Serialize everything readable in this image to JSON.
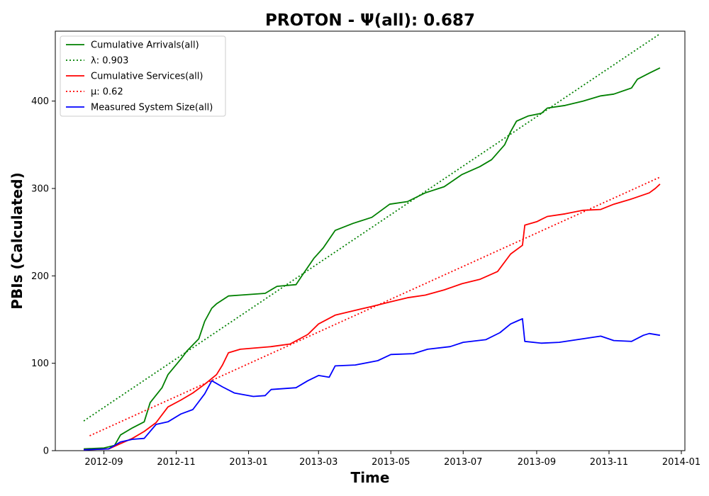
{
  "chart_data": {
    "type": "line",
    "title": "PROTON -  Ψ(all): 0.687",
    "xlabel": "Time",
    "ylabel": "PBIs (Calculated)",
    "x_ticks": [
      "2012-09",
      "2012-11",
      "2013-01",
      "2013-03",
      "2013-05",
      "2013-07",
      "2013-09",
      "2013-11",
      "2014-01"
    ],
    "y_ticks": [
      "0",
      "100",
      "200",
      "300",
      "400"
    ],
    "xlim": [
      "2012-07-22",
      "2014-01-04"
    ],
    "ylim": [
      0,
      480
    ],
    "grid": false,
    "legend_position": "top-left",
    "series": [
      {
        "name": "Cumulative Arrivals(all)",
        "style": "solid",
        "color": "#008000",
        "points": [
          [
            "2012-08-15",
            2
          ],
          [
            "2012-09-01",
            3
          ],
          [
            "2012-09-10",
            6
          ],
          [
            "2012-09-15",
            18
          ],
          [
            "2012-09-25",
            26
          ],
          [
            "2012-10-05",
            33
          ],
          [
            "2012-10-10",
            55
          ],
          [
            "2012-10-20",
            72
          ],
          [
            "2012-10-25",
            87
          ],
          [
            "2012-11-05",
            105
          ],
          [
            "2012-11-10",
            114
          ],
          [
            "2012-11-20",
            128
          ],
          [
            "2012-11-25",
            148
          ],
          [
            "2012-12-01",
            163
          ],
          [
            "2012-12-05",
            168
          ],
          [
            "2012-12-15",
            177
          ],
          [
            "2012-12-25",
            178
          ],
          [
            "2013-01-15",
            180
          ],
          [
            "2013-01-25",
            188
          ],
          [
            "2013-02-10",
            190
          ],
          [
            "2013-02-15",
            200
          ],
          [
            "2013-02-25",
            220
          ],
          [
            "2013-03-05",
            232
          ],
          [
            "2013-03-15",
            252
          ],
          [
            "2013-03-30",
            260
          ],
          [
            "2013-04-15",
            267
          ],
          [
            "2013-04-30",
            282
          ],
          [
            "2013-05-15",
            285
          ],
          [
            "2013-05-30",
            295
          ],
          [
            "2013-06-15",
            302
          ],
          [
            "2013-06-30",
            316
          ],
          [
            "2013-07-15",
            325
          ],
          [
            "2013-07-25",
            333
          ],
          [
            "2013-08-05",
            350
          ],
          [
            "2013-08-10",
            365
          ],
          [
            "2013-08-15",
            377
          ],
          [
            "2013-08-25",
            383
          ],
          [
            "2013-09-05",
            386
          ],
          [
            "2013-09-10",
            392
          ],
          [
            "2013-09-25",
            395
          ],
          [
            "2013-10-10",
            400
          ],
          [
            "2013-10-25",
            406
          ],
          [
            "2013-11-05",
            408
          ],
          [
            "2013-11-20",
            415
          ],
          [
            "2013-11-25",
            425
          ],
          [
            "2013-12-05",
            432
          ],
          [
            "2013-12-14",
            438
          ]
        ]
      },
      {
        "name": "λ: 0.903",
        "style": "dotted",
        "color": "#008000",
        "points": [
          [
            "2012-08-15",
            34
          ],
          [
            "2013-12-14",
            477
          ]
        ]
      },
      {
        "name": "Cumulative Services(all)",
        "style": "solid",
        "color": "#ff0000",
        "points": [
          [
            "2012-08-15",
            1
          ],
          [
            "2012-09-05",
            2
          ],
          [
            "2012-09-15",
            8
          ],
          [
            "2012-09-25",
            14
          ],
          [
            "2012-10-05",
            22
          ],
          [
            "2012-10-15",
            32
          ],
          [
            "2012-10-25",
            50
          ],
          [
            "2012-11-05",
            58
          ],
          [
            "2012-11-15",
            66
          ],
          [
            "2012-11-25",
            76
          ],
          [
            "2012-12-05",
            87
          ],
          [
            "2012-12-10",
            98
          ],
          [
            "2012-12-15",
            112
          ],
          [
            "2012-12-25",
            116
          ],
          [
            "2013-01-20",
            119
          ],
          [
            "2013-02-05",
            122
          ],
          [
            "2013-02-20",
            133
          ],
          [
            "2013-03-01",
            145
          ],
          [
            "2013-03-15",
            155
          ],
          [
            "2013-03-30",
            160
          ],
          [
            "2013-04-15",
            165
          ],
          [
            "2013-04-30",
            170
          ],
          [
            "2013-05-15",
            175
          ],
          [
            "2013-05-30",
            178
          ],
          [
            "2013-06-15",
            184
          ],
          [
            "2013-06-30",
            191
          ],
          [
            "2013-07-15",
            196
          ],
          [
            "2013-07-30",
            205
          ],
          [
            "2013-08-10",
            225
          ],
          [
            "2013-08-20",
            235
          ],
          [
            "2013-08-22",
            258
          ],
          [
            "2013-09-01",
            262
          ],
          [
            "2013-09-10",
            268
          ],
          [
            "2013-09-25",
            271
          ],
          [
            "2013-10-10",
            275
          ],
          [
            "2013-10-25",
            276
          ],
          [
            "2013-11-05",
            282
          ],
          [
            "2013-11-20",
            288
          ],
          [
            "2013-12-05",
            295
          ],
          [
            "2013-12-10",
            300
          ],
          [
            "2013-12-14",
            305
          ]
        ]
      },
      {
        "name": "μ: 0.62",
        "style": "dotted",
        "color": "#ff0000",
        "points": [
          [
            "2012-08-20",
            17
          ],
          [
            "2013-12-14",
            313
          ]
        ]
      },
      {
        "name": "Measured System Size(all)",
        "style": "solid",
        "color": "#0000ff",
        "points": [
          [
            "2012-08-15",
            1
          ],
          [
            "2012-09-05",
            2
          ],
          [
            "2012-09-15",
            10
          ],
          [
            "2012-09-25",
            13
          ],
          [
            "2012-10-05",
            14
          ],
          [
            "2012-10-15",
            30
          ],
          [
            "2012-10-25",
            33
          ],
          [
            "2012-11-05",
            42
          ],
          [
            "2012-11-15",
            47
          ],
          [
            "2012-11-25",
            65
          ],
          [
            "2012-12-01",
            80
          ],
          [
            "2012-12-10",
            73
          ],
          [
            "2012-12-20",
            66
          ],
          [
            "2013-01-05",
            62
          ],
          [
            "2013-01-15",
            63
          ],
          [
            "2013-01-20",
            70
          ],
          [
            "2013-02-10",
            72
          ],
          [
            "2013-02-20",
            80
          ],
          [
            "2013-03-01",
            86
          ],
          [
            "2013-03-10",
            84
          ],
          [
            "2013-03-15",
            97
          ],
          [
            "2013-04-01",
            98
          ],
          [
            "2013-04-20",
            103
          ],
          [
            "2013-05-01",
            110
          ],
          [
            "2013-05-20",
            111
          ],
          [
            "2013-06-01",
            116
          ],
          [
            "2013-06-20",
            119
          ],
          [
            "2013-07-01",
            124
          ],
          [
            "2013-07-20",
            127
          ],
          [
            "2013-08-01",
            135
          ],
          [
            "2013-08-10",
            145
          ],
          [
            "2013-08-15",
            148
          ],
          [
            "2013-08-20",
            151
          ],
          [
            "2013-08-22",
            125
          ],
          [
            "2013-09-05",
            123
          ],
          [
            "2013-09-20",
            124
          ],
          [
            "2013-10-10",
            128
          ],
          [
            "2013-10-25",
            131
          ],
          [
            "2013-11-05",
            126
          ],
          [
            "2013-11-20",
            125
          ],
          [
            "2013-11-30",
            132
          ],
          [
            "2013-12-05",
            134
          ],
          [
            "2013-12-14",
            132
          ]
        ]
      }
    ]
  }
}
